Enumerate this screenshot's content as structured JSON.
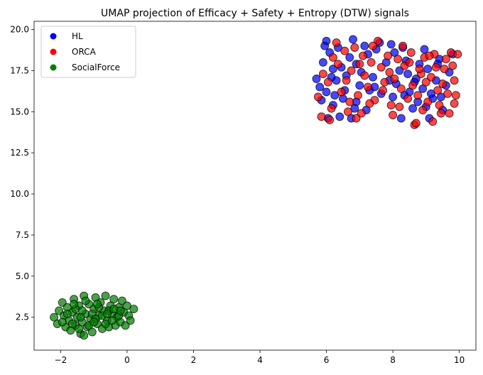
{
  "chart_data": {
    "type": "scatter",
    "title": "UMAP projection of Efficacy + Safety + Entropy (DTW) signals",
    "xlabel": "",
    "ylabel": "",
    "xlim": [
      -2.8,
      10.5
    ],
    "ylim": [
      0.5,
      20.5
    ],
    "xticks": [
      -2,
      0,
      2,
      4,
      6,
      8,
      10
    ],
    "yticks": [
      2.5,
      5.0,
      7.5,
      10.0,
      12.5,
      15.0,
      17.5,
      20.0
    ],
    "ytick_labels": [
      "2.5",
      "5.0",
      "7.5",
      "10.0",
      "12.5",
      "15.0",
      "17.5",
      "20.0"
    ],
    "grid": false,
    "legend_position": "top-left",
    "series": [
      {
        "name": "HL",
        "color": "#0000ff",
        "points": [
          [
            5.7,
            17.0
          ],
          [
            5.8,
            16.5
          ],
          [
            5.9,
            18.0
          ],
          [
            6.0,
            19.3
          ],
          [
            6.1,
            18.6
          ],
          [
            6.2,
            17.6
          ],
          [
            6.3,
            16.9
          ],
          [
            6.0,
            16.2
          ],
          [
            6.2,
            15.4
          ],
          [
            6.4,
            14.7
          ],
          [
            6.5,
            15.8
          ],
          [
            6.6,
            17.2
          ],
          [
            6.7,
            18.3
          ],
          [
            6.8,
            19.4
          ],
          [
            6.9,
            17.9
          ],
          [
            7.0,
            16.6
          ],
          [
            6.9,
            15.6
          ],
          [
            7.2,
            15.1
          ],
          [
            7.3,
            16.3
          ],
          [
            7.4,
            17.1
          ],
          [
            7.5,
            18.8
          ],
          [
            7.6,
            19.2
          ],
          [
            7.8,
            18.0
          ],
          [
            7.9,
            16.9
          ],
          [
            8.0,
            15.9
          ],
          [
            8.1,
            16.7
          ],
          [
            8.2,
            17.5
          ],
          [
            8.3,
            18.9
          ],
          [
            8.4,
            18.1
          ],
          [
            8.5,
            16.2
          ],
          [
            8.6,
            15.2
          ],
          [
            8.7,
            17.0
          ],
          [
            8.8,
            17.9
          ],
          [
            8.9,
            16.4
          ],
          [
            9.0,
            15.3
          ],
          [
            9.1,
            14.6
          ],
          [
            9.2,
            15.8
          ],
          [
            9.3,
            16.9
          ],
          [
            9.4,
            18.2
          ],
          [
            9.5,
            15.1
          ],
          [
            9.6,
            16.6
          ],
          [
            9.7,
            17.4
          ],
          [
            9.8,
            18.5
          ],
          [
            6.05,
            14.6
          ],
          [
            6.45,
            17.7
          ],
          [
            7.15,
            19.0
          ],
          [
            7.05,
            17.4
          ],
          [
            8.25,
            14.6
          ],
          [
            8.75,
            15.6
          ],
          [
            9.15,
            16.1
          ],
          [
            5.85,
            15.7
          ],
          [
            6.35,
            18.9
          ],
          [
            7.65,
            16.1
          ],
          [
            8.05,
            18.6
          ],
          [
            8.45,
            17.3
          ],
          [
            9.35,
            17.9
          ],
          [
            6.75,
            14.6
          ],
          [
            7.95,
            19.1
          ],
          [
            8.95,
            18.8
          ],
          [
            6.15,
            17.1
          ],
          [
            7.45,
            16.5
          ],
          [
            6.55,
            16.3
          ],
          [
            8.65,
            16.8
          ],
          [
            9.05,
            17.6
          ],
          [
            5.95,
            19.0
          ],
          [
            6.85,
            15.2
          ],
          [
            7.25,
            18.5
          ],
          [
            9.45,
            15.9
          ],
          [
            8.35,
            16.0
          ],
          [
            6.25,
            16.0
          ]
        ]
      },
      {
        "name": "ORCA",
        "color": "#ff0000",
        "points": [
          [
            5.75,
            15.9
          ],
          [
            5.85,
            14.7
          ],
          [
            6.05,
            16.8
          ],
          [
            6.15,
            15.2
          ],
          [
            6.35,
            17.9
          ],
          [
            6.45,
            16.2
          ],
          [
            6.55,
            18.7
          ],
          [
            6.65,
            15.0
          ],
          [
            6.75,
            17.5
          ],
          [
            6.85,
            18.9
          ],
          [
            6.95,
            16.0
          ],
          [
            7.05,
            14.9
          ],
          [
            7.15,
            17.2
          ],
          [
            7.25,
            16.5
          ],
          [
            7.35,
            18.0
          ],
          [
            7.45,
            15.7
          ],
          [
            7.55,
            19.3
          ],
          [
            7.65,
            17.7
          ],
          [
            7.75,
            16.8
          ],
          [
            7.85,
            18.4
          ],
          [
            7.95,
            15.4
          ],
          [
            8.05,
            17.0
          ],
          [
            8.15,
            18.2
          ],
          [
            8.25,
            16.4
          ],
          [
            8.35,
            17.8
          ],
          [
            8.45,
            15.8
          ],
          [
            8.55,
            18.6
          ],
          [
            8.65,
            14.2
          ],
          [
            8.75,
            16.0
          ],
          [
            8.85,
            17.3
          ],
          [
            8.95,
            18.3
          ],
          [
            9.05,
            15.6
          ],
          [
            9.15,
            17.1
          ],
          [
            9.25,
            18.5
          ],
          [
            9.35,
            16.3
          ],
          [
            9.45,
            14.9
          ],
          [
            9.55,
            17.6
          ],
          [
            9.65,
            16.1
          ],
          [
            9.75,
            18.6
          ],
          [
            9.85,
            15.5
          ],
          [
            9.9,
            16.0
          ],
          [
            9.8,
            17.8
          ],
          [
            9.7,
            14.9
          ],
          [
            9.6,
            18.2
          ],
          [
            9.5,
            16.7
          ],
          [
            9.4,
            15.4
          ],
          [
            9.3,
            17.7
          ],
          [
            9.2,
            14.4
          ],
          [
            9.1,
            18.4
          ],
          [
            9.0,
            16.8
          ],
          [
            8.9,
            15.1
          ],
          [
            8.8,
            17.6
          ],
          [
            8.7,
            14.3
          ],
          [
            8.6,
            16.6
          ],
          [
            8.5,
            18.0
          ],
          [
            6.1,
            14.5
          ],
          [
            6.3,
            19.2
          ],
          [
            6.6,
            16.9
          ],
          [
            6.9,
            14.6
          ],
          [
            7.1,
            18.4
          ],
          [
            7.3,
            15.5
          ],
          [
            7.7,
            16.3
          ],
          [
            8.0,
            14.8
          ],
          [
            8.3,
            19.0
          ],
          [
            5.9,
            17.3
          ],
          [
            6.2,
            18.3
          ],
          [
            6.7,
            15.6
          ],
          [
            7.0,
            17.9
          ],
          [
            7.4,
            19.0
          ],
          [
            7.9,
            17.4
          ],
          [
            8.2,
            15.3
          ],
          [
            9.95,
            18.5
          ],
          [
            9.85,
            16.9
          ]
        ]
      },
      {
        "name": "SocialForce",
        "color": "#008000",
        "points": [
          [
            -2.2,
            2.5
          ],
          [
            -2.1,
            2.1
          ],
          [
            -2.05,
            2.9
          ],
          [
            -1.95,
            3.4
          ],
          [
            -1.9,
            2.6
          ],
          [
            -1.85,
            1.9
          ],
          [
            -1.8,
            3.1
          ],
          [
            -1.75,
            2.3
          ],
          [
            -1.7,
            1.7
          ],
          [
            -1.65,
            2.8
          ],
          [
            -1.6,
            3.6
          ],
          [
            -1.55,
            2.0
          ],
          [
            -1.5,
            2.5
          ],
          [
            -1.45,
            3.2
          ],
          [
            -1.4,
            1.5
          ],
          [
            -1.35,
            2.2
          ],
          [
            -1.3,
            3.8
          ],
          [
            -1.25,
            2.7
          ],
          [
            -1.2,
            1.9
          ],
          [
            -1.15,
            3.3
          ],
          [
            -1.1,
            2.4
          ],
          [
            -1.05,
            1.6
          ],
          [
            -1.0,
            3.0
          ],
          [
            -0.95,
            3.7
          ],
          [
            -0.9,
            2.1
          ],
          [
            -0.85,
            2.6
          ],
          [
            -0.8,
            3.4
          ],
          [
            -0.75,
            1.8
          ],
          [
            -0.7,
            2.9
          ],
          [
            -0.65,
            3.8
          ],
          [
            -0.6,
            2.3
          ],
          [
            -0.55,
            1.9
          ],
          [
            -0.5,
            3.2
          ],
          [
            -0.45,
            2.7
          ],
          [
            -0.4,
            3.6
          ],
          [
            -0.35,
            2.0
          ],
          [
            -0.3,
            2.5
          ],
          [
            -0.25,
            3.1
          ],
          [
            -0.2,
            2.2
          ],
          [
            -0.15,
            3.5
          ],
          [
            -0.1,
            2.8
          ],
          [
            -0.05,
            2.0
          ],
          [
            0.0,
            3.2
          ],
          [
            0.05,
            2.6
          ],
          [
            0.1,
            2.3
          ],
          [
            0.2,
            3.0
          ],
          [
            -1.95,
            2.2
          ],
          [
            -1.65,
            2.1
          ],
          [
            -1.55,
            3.0
          ],
          [
            -1.35,
            2.9
          ],
          [
            -1.15,
            2.0
          ],
          [
            -1.05,
            2.7
          ],
          [
            -0.85,
            3.1
          ],
          [
            -0.65,
            2.1
          ],
          [
            -0.45,
            2.3
          ],
          [
            -0.25,
            2.6
          ],
          [
            -1.45,
            1.8
          ],
          [
            -1.25,
            3.5
          ],
          [
            -0.95,
            2.4
          ],
          [
            -0.75,
            2.6
          ],
          [
            -0.55,
            2.9
          ],
          [
            -1.8,
            2.7
          ],
          [
            -1.4,
            2.5
          ],
          [
            -1.0,
            2.2
          ],
          [
            -0.6,
            2.7
          ],
          [
            -0.2,
            2.9
          ],
          [
            -1.3,
            1.4
          ],
          [
            -0.9,
            3.3
          ],
          [
            -0.4,
            3.0
          ],
          [
            -1.6,
            3.3
          ]
        ]
      }
    ]
  }
}
